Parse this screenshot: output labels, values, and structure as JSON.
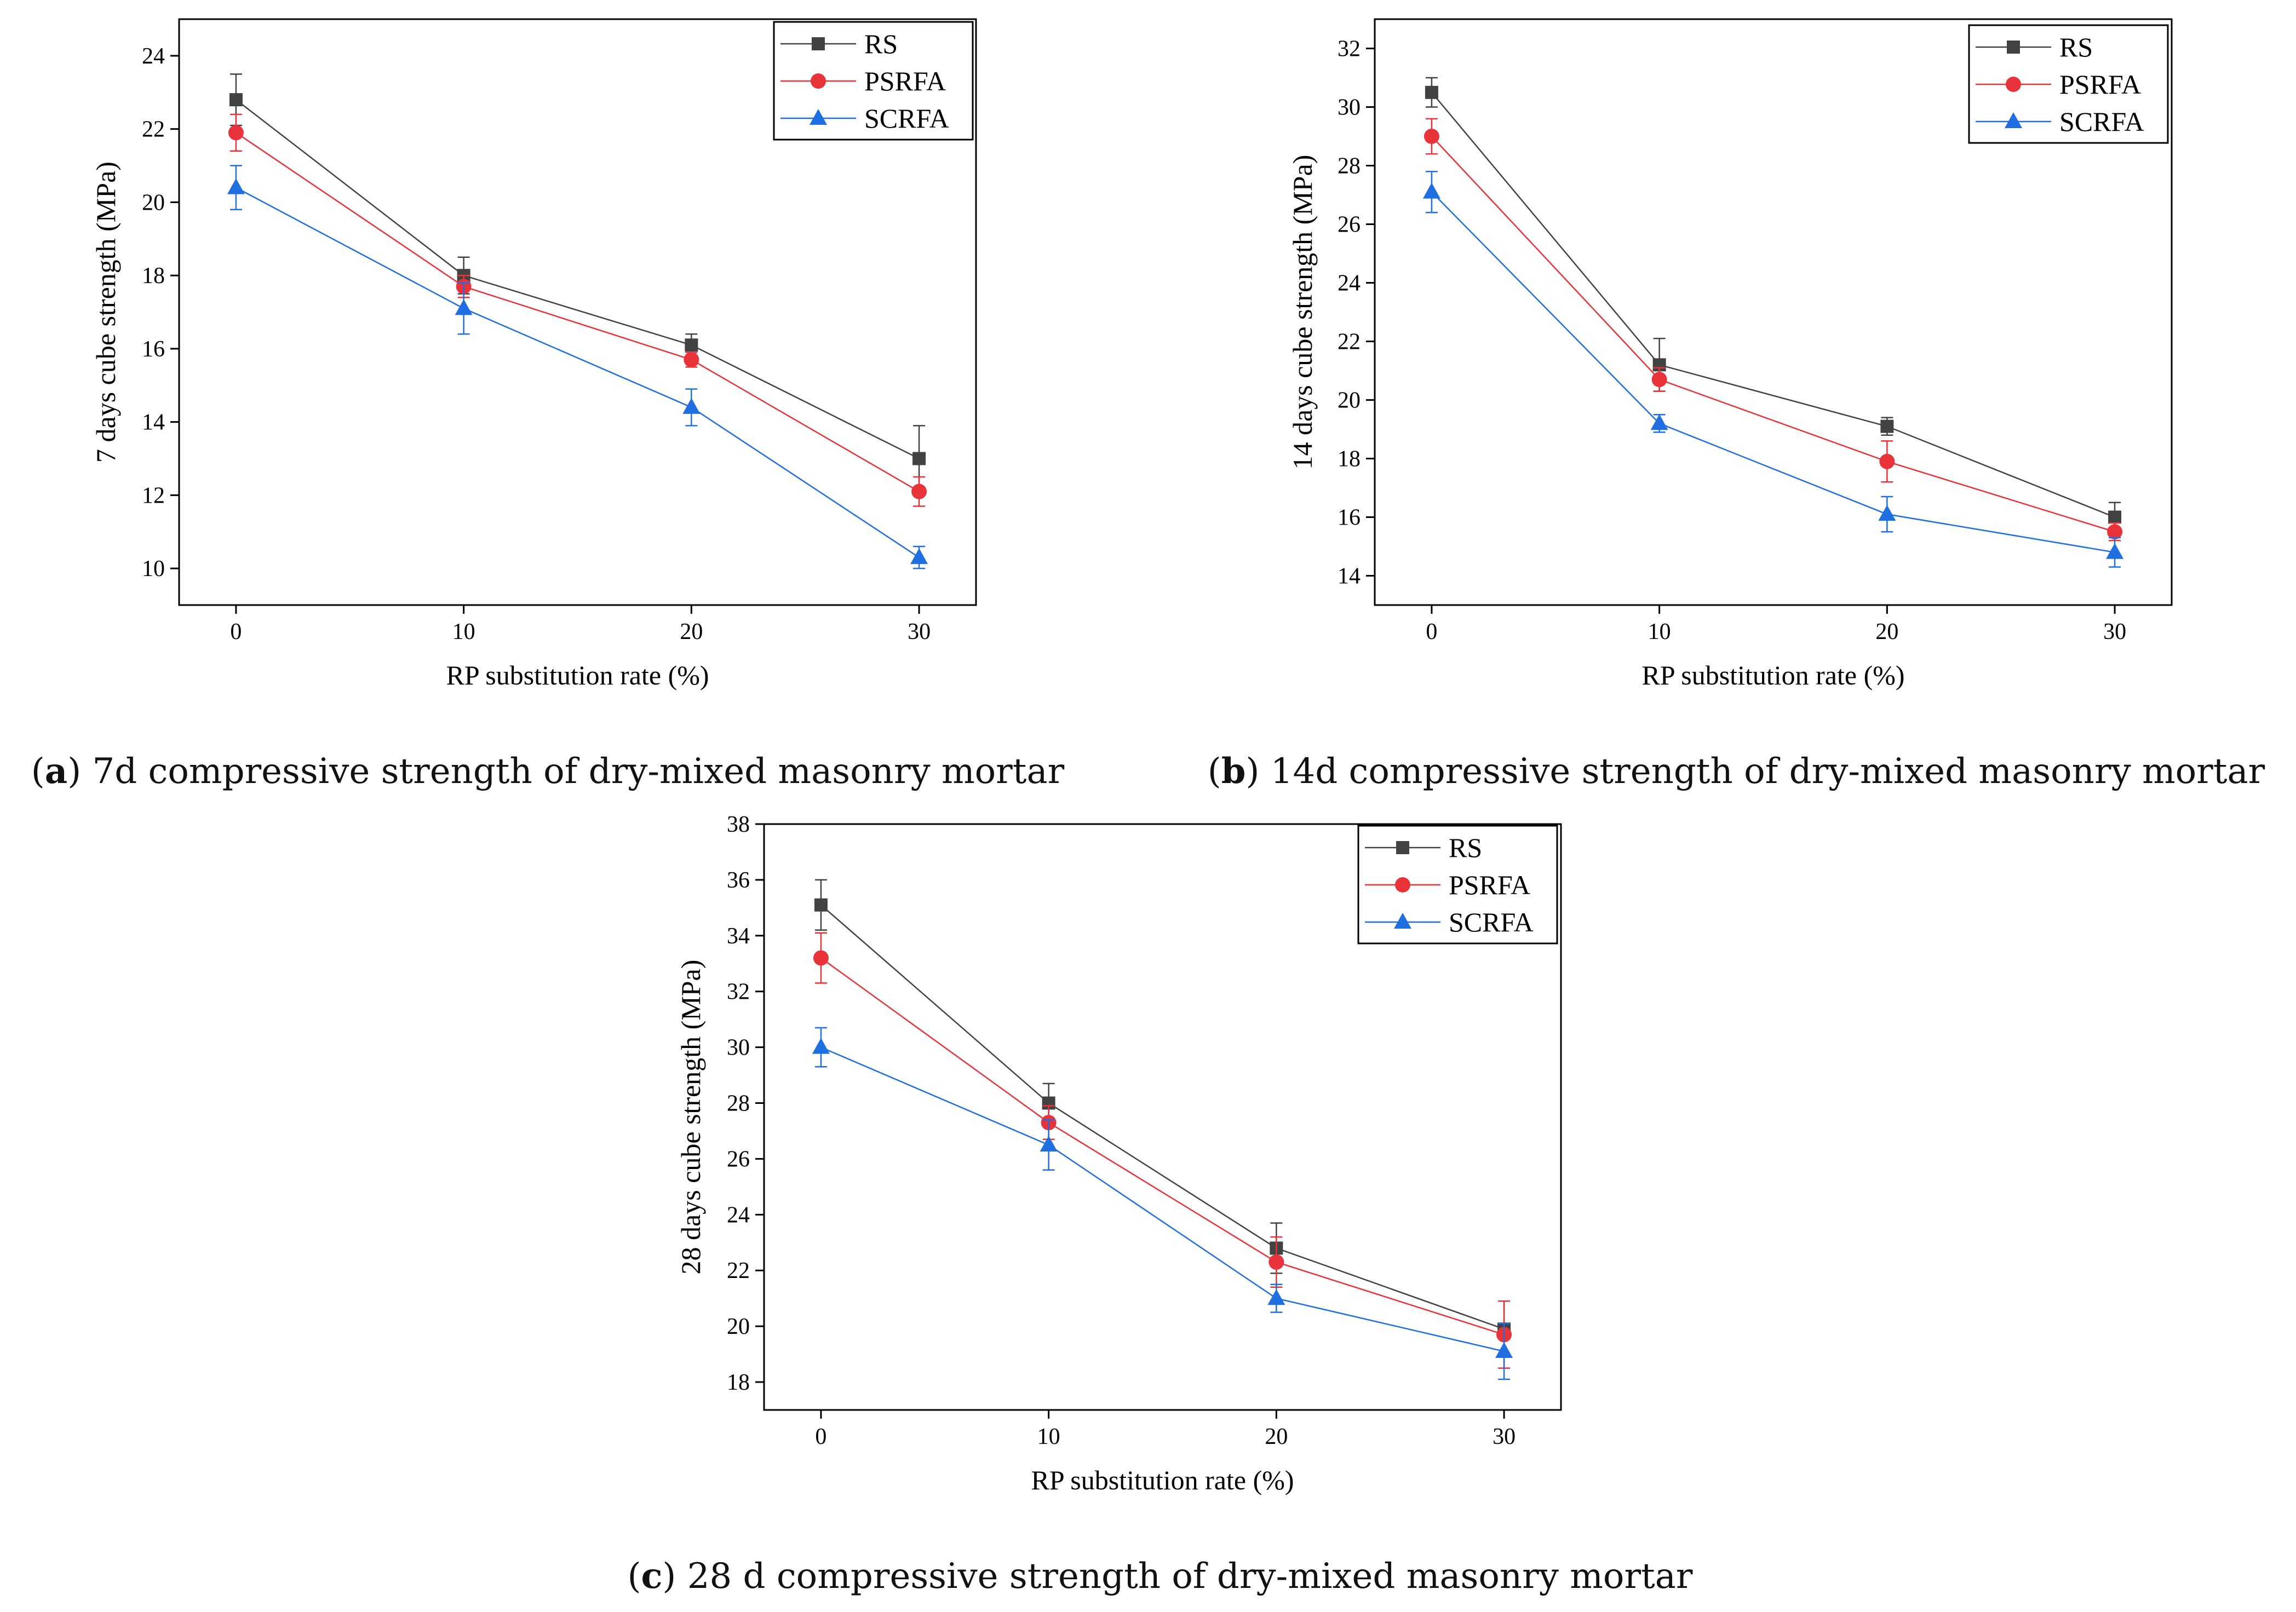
{
  "series_styles": [
    {
      "name": "RS",
      "color": "#424242",
      "marker": "square"
    },
    {
      "name": "PSRFA",
      "color": "#e8333a",
      "marker": "circle"
    },
    {
      "name": "SCRFA",
      "color": "#1f6fe0",
      "marker": "triangle"
    }
  ],
  "chart_data": [
    {
      "type": "line",
      "caption_label": "a",
      "caption_text": "7d compressive strength of dry-mixed masonry mortar",
      "xlabel": "RP substitution rate (%)",
      "ylabel": "7 days cube strength (MPa)",
      "x": [
        0,
        10,
        20,
        30
      ],
      "xticks": [
        "0",
        "10",
        "20",
        "30"
      ],
      "xlim": [
        -2.5,
        32.5
      ],
      "ylim": [
        9,
        25
      ],
      "yticks": [
        10,
        12,
        14,
        16,
        18,
        20,
        22,
        24
      ],
      "legend_position": "top-right",
      "series": [
        {
          "name": "RS",
          "values": [
            22.8,
            18.0,
            16.1,
            13.0
          ],
          "errors": [
            0.7,
            0.5,
            0.3,
            0.9
          ]
        },
        {
          "name": "PSRFA",
          "values": [
            21.9,
            17.7,
            15.7,
            12.1
          ],
          "errors": [
            0.5,
            0.3,
            0.2,
            0.4
          ]
        },
        {
          "name": "SCRFA",
          "values": [
            20.4,
            17.1,
            14.4,
            10.3
          ],
          "errors": [
            0.6,
            0.7,
            0.5,
            0.3
          ]
        }
      ]
    },
    {
      "type": "line",
      "caption_label": "b",
      "caption_text": "14d compressive strength of dry-mixed masonry mortar",
      "xlabel": "RP substitution rate (%)",
      "ylabel": "14 days cube strength (MPa)",
      "x": [
        0,
        10,
        20,
        30
      ],
      "xticks": [
        "0",
        "10",
        "20",
        "30"
      ],
      "xlim": [
        -2.5,
        32.5
      ],
      "ylim": [
        13,
        33
      ],
      "yticks": [
        14,
        16,
        18,
        20,
        22,
        24,
        26,
        28,
        30,
        32
      ],
      "legend_position": "top-right",
      "series": [
        {
          "name": "RS",
          "values": [
            30.5,
            21.2,
            19.1,
            16.0
          ],
          "errors": [
            0.5,
            0.9,
            0.3,
            0.5
          ]
        },
        {
          "name": "PSRFA",
          "values": [
            29.0,
            20.7,
            17.9,
            15.5
          ],
          "errors": [
            0.6,
            0.4,
            0.7,
            0.3
          ]
        },
        {
          "name": "SCRFA",
          "values": [
            27.1,
            19.2,
            16.1,
            14.8
          ],
          "errors": [
            0.7,
            0.3,
            0.6,
            0.5
          ]
        }
      ]
    },
    {
      "type": "line",
      "caption_label": "c",
      "caption_text": "28 d compressive strength of dry-mixed masonry mortar",
      "xlabel": "RP substitution rate (%)",
      "ylabel": "28 days cube strength (MPa)",
      "x": [
        0,
        10,
        20,
        30
      ],
      "xticks": [
        "0",
        "10",
        "20",
        "30"
      ],
      "xlim": [
        -2.5,
        32.5
      ],
      "ylim": [
        17,
        38
      ],
      "yticks": [
        18,
        20,
        22,
        24,
        26,
        28,
        30,
        32,
        34,
        36,
        38
      ],
      "legend_position": "top-right",
      "series": [
        {
          "name": "RS",
          "values": [
            35.1,
            28.0,
            22.8,
            19.9
          ],
          "errors": [
            0.9,
            0.7,
            0.9,
            1.0
          ]
        },
        {
          "name": "PSRFA",
          "values": [
            33.2,
            27.3,
            22.3,
            19.7
          ],
          "errors": [
            0.9,
            0.6,
            0.9,
            1.2
          ]
        },
        {
          "name": "SCRFA",
          "values": [
            30.0,
            26.5,
            21.0,
            19.1
          ],
          "errors": [
            0.7,
            0.9,
            0.5,
            1.0
          ]
        }
      ]
    }
  ]
}
